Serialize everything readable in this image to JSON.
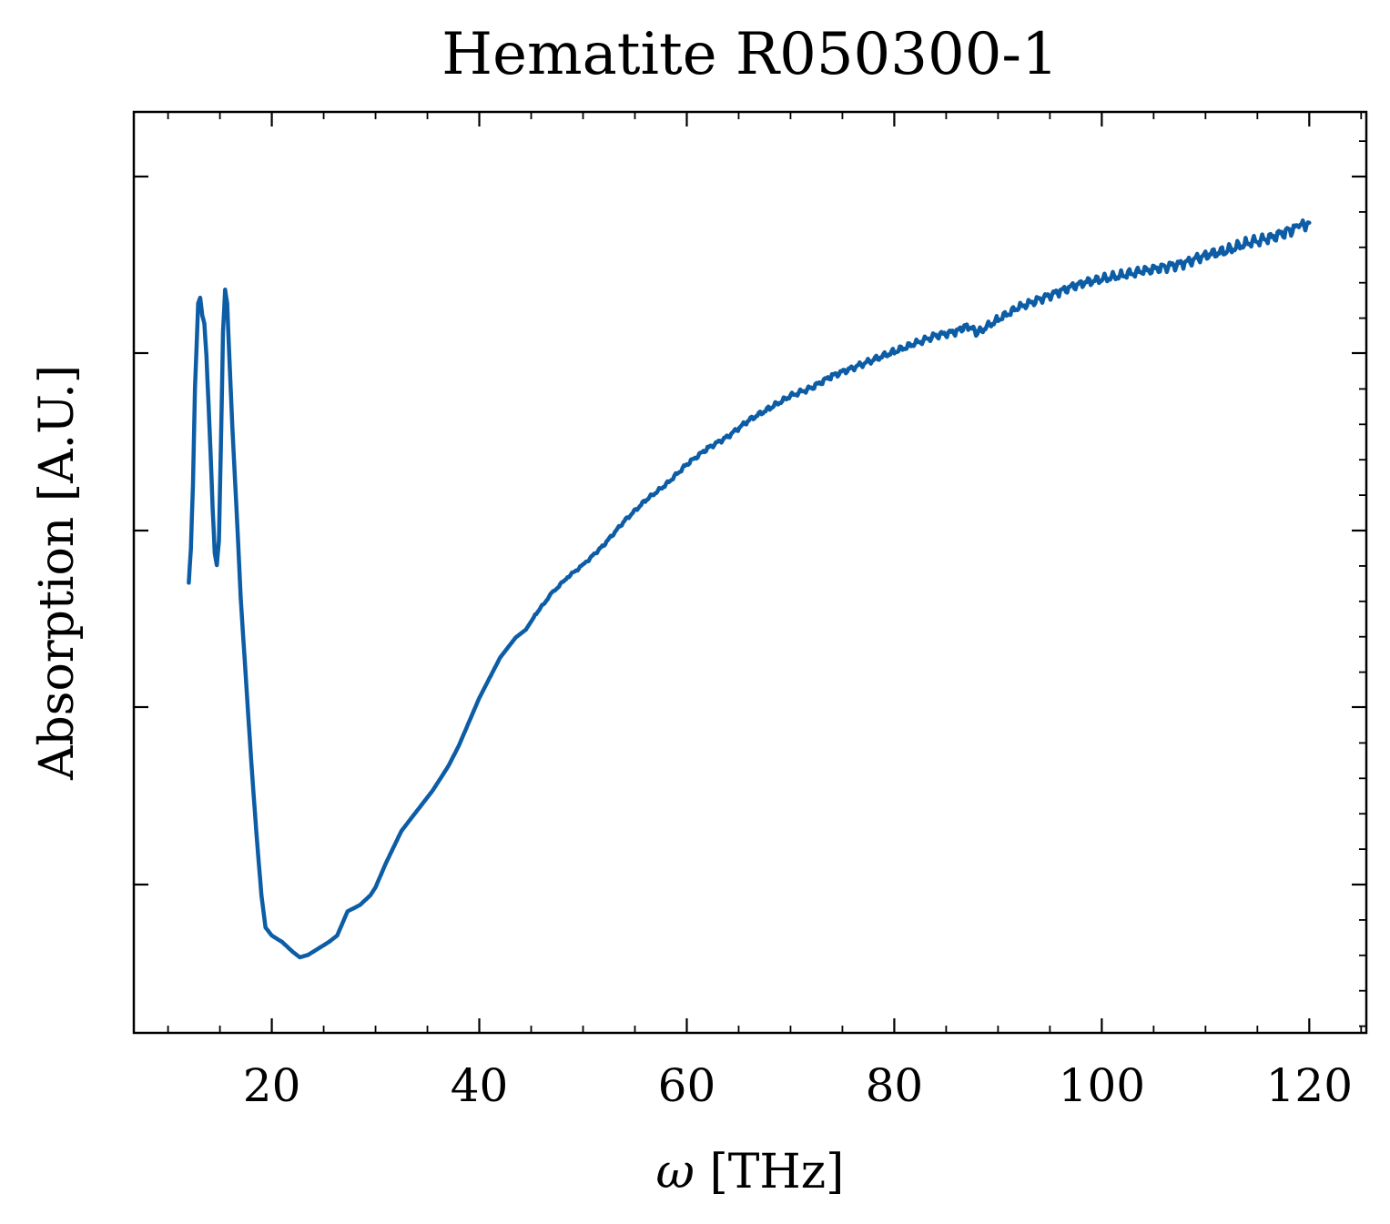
{
  "chart_data": {
    "type": "line",
    "title": "Hematite R050300-1",
    "xlabel_symbol": "ω",
    "xlabel_unit": "[THz]",
    "ylabel": "Absorption [A.U.]",
    "xlim": [
      6.7,
      125.5
    ],
    "ylim": [
      0,
      1
    ],
    "xticks": [
      20,
      40,
      60,
      80,
      100,
      120
    ],
    "xtick_labels": [
      "20",
      "40",
      "60",
      "80",
      "100",
      "120"
    ],
    "y_tick_labels_shown": false,
    "line_color": "#0C5DA5",
    "series": [
      {
        "points": [
          [
            12.0,
            0.508
          ],
          [
            12.2,
            0.55
          ],
          [
            12.4,
            0.63
          ],
          [
            12.6,
            0.75
          ],
          [
            12.9,
            0.855
          ],
          [
            13.1,
            0.862
          ],
          [
            13.3,
            0.84
          ],
          [
            13.5,
            0.83
          ],
          [
            13.7,
            0.79
          ],
          [
            13.9,
            0.73
          ],
          [
            14.1,
            0.67
          ],
          [
            14.3,
            0.6
          ],
          [
            14.5,
            0.545
          ],
          [
            14.7,
            0.53
          ],
          [
            14.9,
            0.56
          ],
          [
            15.1,
            0.68
          ],
          [
            15.3,
            0.82
          ],
          [
            15.5,
            0.872
          ],
          [
            15.7,
            0.855
          ],
          [
            15.9,
            0.79
          ],
          [
            16.2,
            0.7
          ],
          [
            16.6,
            0.6
          ],
          [
            17.0,
            0.49
          ],
          [
            17.5,
            0.39
          ],
          [
            18.0,
            0.29
          ],
          [
            18.5,
            0.2
          ],
          [
            19.0,
            0.12
          ],
          [
            19.4,
            0.08
          ],
          [
            20.0,
            0.07
          ],
          [
            21.0,
            0.062
          ],
          [
            22.0,
            0.05
          ],
          [
            22.7,
            0.043
          ],
          [
            23.5,
            0.046
          ],
          [
            24.5,
            0.054
          ],
          [
            25.5,
            0.062
          ],
          [
            26.3,
            0.07
          ],
          [
            26.8,
            0.085
          ],
          [
            27.3,
            0.1
          ],
          [
            28.5,
            0.108
          ],
          [
            29.5,
            0.12
          ],
          [
            30.0,
            0.13
          ],
          [
            31.0,
            0.16
          ],
          [
            32.5,
            0.2
          ],
          [
            34.0,
            0.225
          ],
          [
            35.5,
            0.25
          ],
          [
            37.0,
            0.28
          ],
          [
            38.0,
            0.305
          ],
          [
            39.0,
            0.335
          ],
          [
            40.0,
            0.365
          ],
          [
            41.0,
            0.39
          ],
          [
            42.0,
            0.415
          ],
          [
            43.5,
            0.44
          ],
          [
            44.5,
            0.45
          ],
          [
            45.5,
            0.47
          ],
          [
            47.0,
            0.495
          ],
          [
            48.5,
            0.515
          ],
          [
            50.0,
            0.53
          ],
          [
            52.0,
            0.555
          ],
          [
            54.0,
            0.585
          ],
          [
            56.0,
            0.61
          ],
          [
            58.0,
            0.63
          ],
          [
            60.0,
            0.655
          ],
          [
            62.0,
            0.675
          ],
          [
            64.0,
            0.69
          ],
          [
            66.0,
            0.71
          ],
          [
            68.0,
            0.725
          ],
          [
            70.0,
            0.74
          ],
          [
            72.0,
            0.75
          ],
          [
            74.0,
            0.765
          ],
          [
            76.0,
            0.775
          ],
          [
            78.0,
            0.785
          ],
          [
            80.0,
            0.795
          ],
          [
            82.0,
            0.805
          ],
          [
            84.0,
            0.815
          ],
          [
            86.0,
            0.82
          ],
          [
            87.0,
            0.828
          ],
          [
            88.0,
            0.818
          ],
          [
            90.0,
            0.835
          ],
          [
            92.0,
            0.85
          ],
          [
            94.0,
            0.86
          ],
          [
            96.0,
            0.87
          ],
          [
            98.0,
            0.88
          ],
          [
            100.0,
            0.885
          ],
          [
            102.0,
            0.89
          ],
          [
            104.0,
            0.895
          ],
          [
            106.0,
            0.9
          ],
          [
            108.0,
            0.905
          ],
          [
            110.0,
            0.915
          ],
          [
            112.0,
            0.92
          ],
          [
            114.0,
            0.93
          ],
          [
            116.0,
            0.935
          ],
          [
            118.0,
            0.945
          ],
          [
            119.0,
            0.95
          ],
          [
            120.0,
            0.955
          ]
        ]
      }
    ]
  }
}
